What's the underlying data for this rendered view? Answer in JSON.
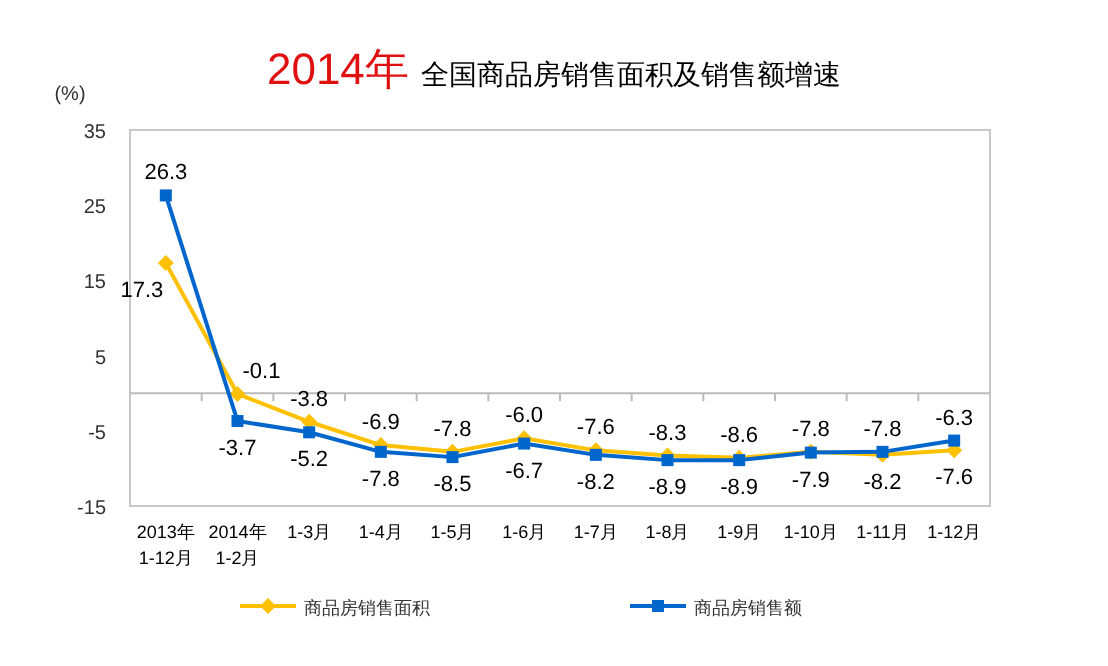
{
  "chart_data": {
    "type": "line",
    "title": "2014年 全国商品房销售面积及销售额增速",
    "ylabel": "(%)",
    "categories": [
      "2013年\n1-12月",
      "2014年\n1-2月",
      "1-3月",
      "1-4月",
      "1-5月",
      "1-6月",
      "1-7月",
      "1-8月",
      "1-9月",
      "1-10月",
      "1-11月",
      "1-12月"
    ],
    "series": [
      {
        "name": "商品房销售面积",
        "color": "#ffc000",
        "marker": "diamond",
        "values": [
          17.3,
          -0.1,
          -3.8,
          -6.9,
          -7.8,
          -6.0,
          -7.6,
          -8.3,
          -8.6,
          -7.8,
          -8.2,
          -7.6
        ],
        "value_labels": [
          "17.3",
          "-0.1",
          "-3.8",
          "-6.9",
          "-7.8",
          "-6.0",
          "-7.6",
          "-8.3",
          "-8.6",
          "-7.8",
          "-8.2",
          "-7.6"
        ]
      },
      {
        "name": "商品房销售额",
        "color": "#0066cc",
        "marker": "square",
        "values": [
          26.3,
          -3.7,
          -5.2,
          -7.8,
          -8.5,
          -6.7,
          -8.2,
          -8.9,
          -8.9,
          -7.9,
          -7.8,
          -6.3
        ]
      }
    ],
    "ylim": [
      -15,
      35
    ],
    "yticks": [
      -15,
      -5,
      5,
      15,
      25,
      35
    ],
    "grid": false,
    "legend": "bottom",
    "data_labels": true,
    "line_style": "solid"
  }
}
